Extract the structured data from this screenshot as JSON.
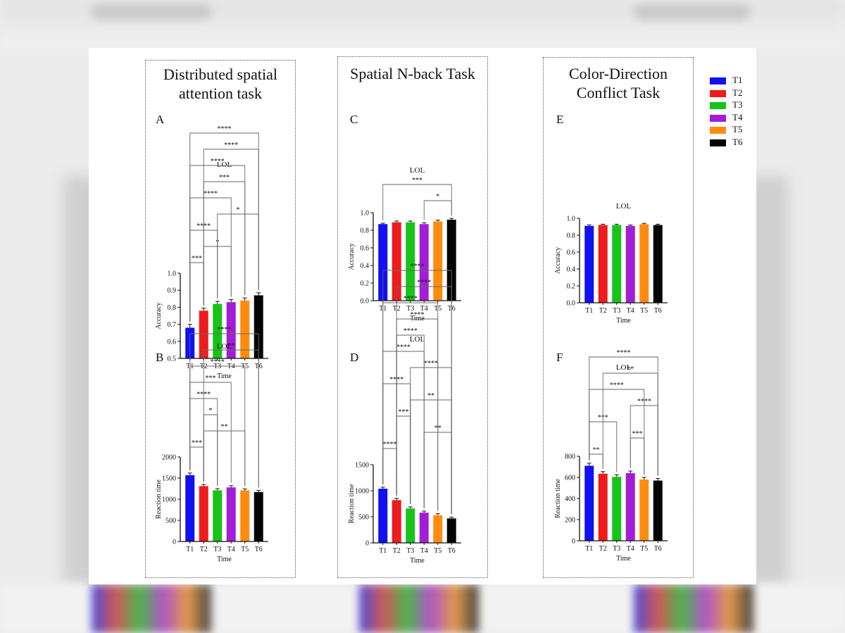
{
  "legend": [
    {
      "label": "T1",
      "color": "#1010f0"
    },
    {
      "label": "T2",
      "color": "#ee1c1c"
    },
    {
      "label": "T3",
      "color": "#19c219"
    },
    {
      "label": "T4",
      "color": "#a21ed6"
    },
    {
      "label": "T5",
      "color": "#ff8c10"
    },
    {
      "label": "T6",
      "color": "#050505"
    }
  ],
  "panels": [
    {
      "title": "Distributed spatial\nattention task"
    },
    {
      "title": "Spatial N-back Task"
    },
    {
      "title": "Color-Direction\nConflict Task"
    }
  ],
  "chart_data": [
    {
      "id": "A",
      "type": "bar",
      "label": "A",
      "title": "LOL",
      "xlabel": "Time",
      "ylabel": "Accuracy",
      "categories": [
        "T1",
        "T2",
        "T3",
        "T4",
        "T5",
        "T6"
      ],
      "values": [
        0.68,
        0.78,
        0.82,
        0.83,
        0.84,
        0.87
      ],
      "errors": [
        0.02,
        0.015,
        0.015,
        0.015,
        0.015,
        0.015
      ],
      "ylim": [
        0.5,
        1.0
      ],
      "yticks": [
        0.5,
        0.6,
        0.7,
        0.8,
        0.9,
        1.0
      ],
      "ytick_labels": [
        "0.5",
        "0.6",
        "0.7",
        "0.8",
        "0.9",
        "1.0"
      ],
      "significance": [
        {
          "from": "T1",
          "to": "T2",
          "label": "***"
        },
        {
          "from": "T2",
          "to": "T4",
          "label": "*"
        },
        {
          "from": "T1",
          "to": "T3",
          "label": "****"
        },
        {
          "from": "T3",
          "to": "T6",
          "label": "*"
        },
        {
          "from": "T1",
          "to": "T4",
          "label": "****"
        },
        {
          "from": "T2",
          "to": "T5",
          "label": "***"
        },
        {
          "from": "T1",
          "to": "T5",
          "label": "****"
        },
        {
          "from": "T2",
          "to": "T6",
          "label": "****"
        },
        {
          "from": "T1",
          "to": "T6",
          "label": "****"
        }
      ]
    },
    {
      "id": "B",
      "type": "bar",
      "label": "B",
      "title": "LOL",
      "xlabel": "Time",
      "ylabel": "Reaction time",
      "categories": [
        "T1",
        "T2",
        "T3",
        "T4",
        "T5",
        "T6"
      ],
      "values": [
        1570,
        1310,
        1210,
        1280,
        1210,
        1170
      ],
      "errors": [
        50,
        40,
        40,
        40,
        35,
        40
      ],
      "ylim": [
        0,
        2000
      ],
      "yticks": [
        0,
        500,
        1000,
        1500,
        2000
      ],
      "ytick_labels": [
        "0",
        "500",
        "1000",
        "1500",
        "2000"
      ],
      "significance": [
        {
          "from": "T1",
          "to": "T2",
          "label": "***"
        },
        {
          "from": "T2",
          "to": "T5",
          "label": "**"
        },
        {
          "from": "T2",
          "to": "T3",
          "label": "*"
        },
        {
          "from": "T1",
          "to": "T3",
          "label": "****"
        },
        {
          "from": "T1",
          "to": "T4",
          "label": "***"
        },
        {
          "from": "T1",
          "to": "T5",
          "label": "****"
        },
        {
          "from": "T2",
          "to": "T6",
          "label": "**"
        },
        {
          "from": "T1",
          "to": "T6",
          "label": "****"
        }
      ]
    },
    {
      "id": "C",
      "type": "bar",
      "label": "C",
      "title": "LOL",
      "xlabel": "Time",
      "ylabel": "Accuracy",
      "categories": [
        "T1",
        "T2",
        "T3",
        "T4",
        "T5",
        "T6"
      ],
      "values": [
        0.87,
        0.89,
        0.89,
        0.87,
        0.9,
        0.92
      ],
      "errors": [
        0.01,
        0.015,
        0.015,
        0.015,
        0.015,
        0.015
      ],
      "ylim": [
        0,
        1.0
      ],
      "yticks": [
        0,
        0.2,
        0.4,
        0.6,
        0.8,
        1.0
      ],
      "ytick_labels": [
        "0.0",
        "0.2",
        "0.4",
        "0.6",
        "0.8",
        "1.0"
      ],
      "significance": [
        {
          "from": "T4",
          "to": "T6",
          "label": "*"
        },
        {
          "from": "T1",
          "to": "T6",
          "label": "***"
        }
      ]
    },
    {
      "id": "D",
      "type": "bar",
      "label": "D",
      "title": "LOL",
      "xlabel": "Time",
      "ylabel": "Reaction time",
      "categories": [
        "T1",
        "T2",
        "T3",
        "T4",
        "T5",
        "T6"
      ],
      "values": [
        1040,
        820,
        660,
        580,
        530,
        470
      ],
      "errors": [
        30,
        35,
        30,
        30,
        30,
        25
      ],
      "ylim": [
        0,
        1500
      ],
      "yticks": [
        0,
        500,
        1000,
        1500
      ],
      "ytick_labels": [
        "0",
        "500",
        "1000",
        "1500"
      ],
      "significance": [
        {
          "from": "T1",
          "to": "T2",
          "label": "****"
        },
        {
          "from": "T4",
          "to": "T6",
          "label": "**"
        },
        {
          "from": "T2",
          "to": "T3",
          "label": "***"
        },
        {
          "from": "T3",
          "to": "T6",
          "label": "**"
        },
        {
          "from": "T1",
          "to": "T3",
          "label": "****"
        },
        {
          "from": "T3",
          "to": "T6",
          "label": "****"
        },
        {
          "from": "T1",
          "to": "T4",
          "label": "****"
        },
        {
          "from": "T2",
          "to": "T4",
          "label": "****"
        },
        {
          "from": "T2",
          "to": "T5",
          "label": "****"
        },
        {
          "from": "T1",
          "to": "T5",
          "label": "****"
        },
        {
          "from": "T2",
          "to": "T6",
          "label": "****"
        },
        {
          "from": "T1",
          "to": "T6",
          "label": "****"
        }
      ]
    },
    {
      "id": "E",
      "type": "bar",
      "label": "E",
      "title": "LOL",
      "xlabel": "Time",
      "ylabel": "Accuracy",
      "categories": [
        "T1",
        "T2",
        "T3",
        "T4",
        "T5",
        "T6"
      ],
      "values": [
        0.91,
        0.92,
        0.92,
        0.91,
        0.93,
        0.92
      ],
      "errors": [
        0.012,
        0.01,
        0.01,
        0.01,
        0.01,
        0.01
      ],
      "ylim": [
        0,
        1.0
      ],
      "yticks": [
        0,
        0.2,
        0.4,
        0.6,
        0.8,
        1.0
      ],
      "ytick_labels": [
        "0.0",
        "0.2",
        "0.4",
        "0.6",
        "0.8",
        "1.0"
      ],
      "significance": []
    },
    {
      "id": "F",
      "type": "bar",
      "label": "F",
      "title": "LOL",
      "xlabel": "Time",
      "ylabel": "Reaction time",
      "categories": [
        "T1",
        "T2",
        "T3",
        "T4",
        "T5",
        "T6"
      ],
      "values": [
        710,
        635,
        605,
        640,
        580,
        570
      ],
      "errors": [
        25,
        20,
        20,
        20,
        20,
        20
      ],
      "ylim": [
        0,
        800
      ],
      "yticks": [
        0,
        200,
        400,
        600,
        800
      ],
      "ytick_labels": [
        "0",
        "200",
        "400",
        "600",
        "800"
      ],
      "significance": [
        {
          "from": "T1",
          "to": "T2",
          "label": "**"
        },
        {
          "from": "T4",
          "to": "T5",
          "label": "***"
        },
        {
          "from": "T1",
          "to": "T3",
          "label": "***"
        },
        {
          "from": "T4",
          "to": "T6",
          "label": "****"
        },
        {
          "from": "T1",
          "to": "T5",
          "label": "****"
        },
        {
          "from": "T2",
          "to": "T6",
          "label": "**"
        },
        {
          "from": "T1",
          "to": "T6",
          "label": "****"
        }
      ]
    }
  ]
}
